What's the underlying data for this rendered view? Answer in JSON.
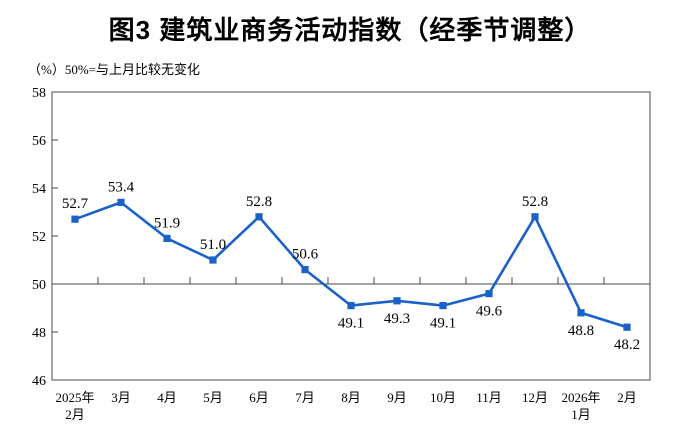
{
  "header": {
    "title": "图3 建筑业商务活动指数（经季节调整）",
    "subtitle": "（%）50%=与上月比较无变化"
  },
  "chart_data": {
    "type": "line",
    "title": "图3 建筑业商务活动指数（经季节调整）",
    "subtitle": "（%）50%=与上月比较无变化",
    "unit": "%",
    "categories": [
      "2025年\n2月",
      "3月",
      "4月",
      "5月",
      "6月",
      "7月",
      "8月",
      "9月",
      "10月",
      "11月",
      "12月",
      "2026年\n1月",
      "2月"
    ],
    "series": [
      {
        "name": "建筑业商务活动指数",
        "values": [
          52.7,
          53.4,
          51.9,
          51.0,
          52.8,
          50.6,
          49.1,
          49.3,
          49.1,
          49.6,
          52.8,
          48.8,
          48.2
        ],
        "value_labels": [
          "52.7",
          "53.4",
          "51.9",
          "51.0",
          "52.8",
          "50.6",
          "49.1",
          "49.3",
          "49.1",
          "49.6",
          "52.8",
          "48.8",
          "48.2"
        ],
        "label_positions": [
          "above",
          "above",
          "above",
          "above",
          "above",
          "above",
          "below",
          "below",
          "below",
          "below",
          "above",
          "below",
          "below"
        ]
      }
    ],
    "ylim": [
      46,
      58
    ],
    "ytick_step": 2,
    "ytick_labels": [
      "46",
      "48",
      "50",
      "52",
      "54",
      "56",
      "58"
    ],
    "reference_line": 50,
    "grid": "off",
    "legend_position": "none",
    "colors": {
      "line": "#1a62c9",
      "marker": "#1a62c9",
      "axis": "#4a4a4a",
      "text": "#000000",
      "background": "#ffffff"
    }
  }
}
